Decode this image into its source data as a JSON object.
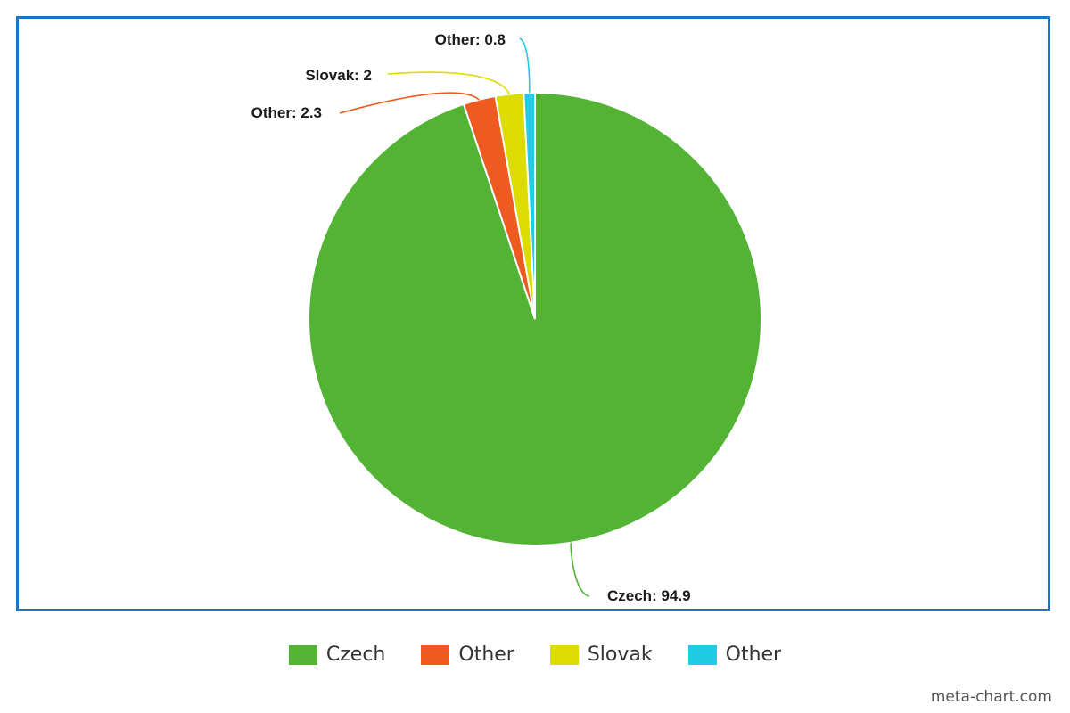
{
  "chart_data": {
    "type": "pie",
    "slices": [
      {
        "label": "Czech",
        "value": 94.9,
        "color": "#52b335",
        "data_label": "Czech: 94.9"
      },
      {
        "label": "Other",
        "value": 2.3,
        "color": "#ee5a1f",
        "data_label": "Other: 2.3"
      },
      {
        "label": "Slovak",
        "value": 2,
        "color": "#dddc00",
        "data_label": "Slovak: 2"
      },
      {
        "label": "Other",
        "value": 0.8,
        "color": "#1fcbe5",
        "data_label": "Other: 0.8"
      }
    ],
    "start_angle_deg": 0,
    "direction": "clockwise",
    "legend": [
      "Czech",
      "Other",
      "Slovak",
      "Other"
    ],
    "legend_position": "bottom"
  },
  "frame_color": "#1f74c6",
  "watermark": "meta-chart.com"
}
